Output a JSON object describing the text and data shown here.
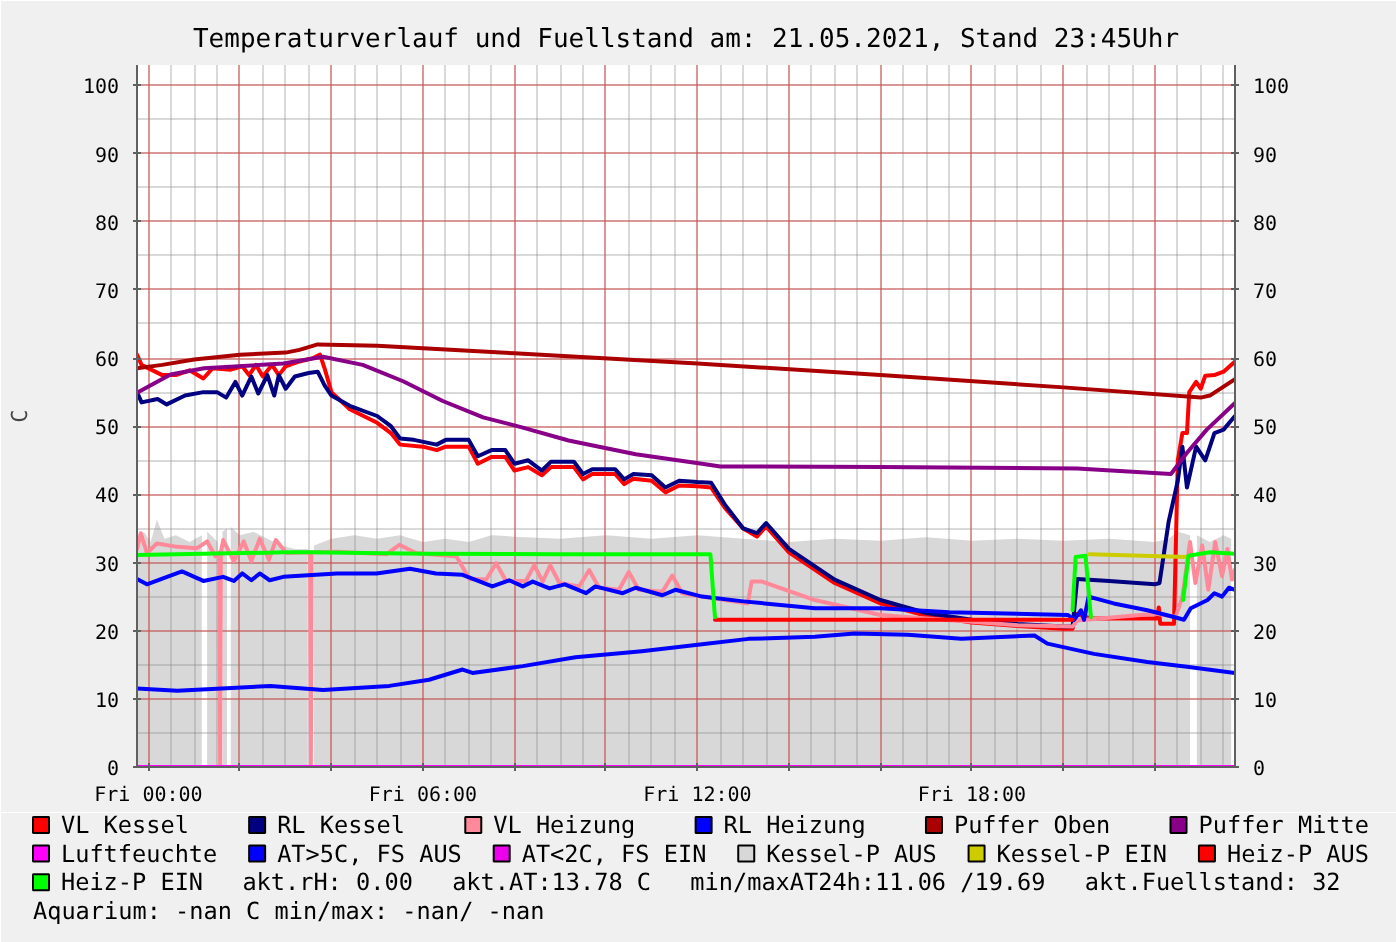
{
  "chart_data": {
    "type": "line",
    "title": "Temperaturverlauf und Fuellstand am: 21.05.2021, Stand 23:45Uhr",
    "ylabel": "C",
    "xlim": [
      "2021-05-20T23:45",
      "2021-05-21T23:45"
    ],
    "xticks": [
      {
        "value": "2021-05-21T00:00",
        "label": "Fri 00:00"
      },
      {
        "value": "2021-05-21T02:00",
        "label": null
      },
      {
        "value": "2021-05-21T04:00",
        "label": null
      },
      {
        "value": "2021-05-21T06:00",
        "label": "Fri 06:00"
      },
      {
        "value": "2021-05-21T08:00",
        "label": null
      },
      {
        "value": "2021-05-21T10:00",
        "label": null
      },
      {
        "value": "2021-05-21T12:00",
        "label": "Fri 12:00"
      },
      {
        "value": "2021-05-21T14:00",
        "label": null
      },
      {
        "value": "2021-05-21T16:00",
        "label": null
      },
      {
        "value": "2021-05-21T18:00",
        "label": "Fri 18:00"
      },
      {
        "value": "2021-05-21T20:00",
        "label": null
      },
      {
        "value": "2021-05-21T22:00",
        "label": null
      }
    ],
    "ylim": [
      0,
      103
    ],
    "yticks": [
      0,
      10,
      20,
      30,
      40,
      50,
      60,
      70,
      80,
      90,
      100
    ],
    "y2lim": [
      0,
      103
    ],
    "y2ticks": [
      0,
      10,
      20,
      30,
      40,
      50,
      60,
      70,
      80,
      90,
      100
    ],
    "grid": true,
    "legend": "bottom",
    "annotations": [
      "akt.rH: 0.00",
      "akt.AT:13.78 C",
      "min/maxAT24h:11.06 /19.69",
      "akt.Fuellstand:   32",
      "Aquarium: -nan C  min/max: -nan/ -nan"
    ],
    "series": [
      {
        "name": "VL Kessel",
        "color": "#ff0000",
        "x": [
          "2021-05-20T23:45",
          "2021-05-20T23:51",
          "2021-05-21T00:18",
          "2021-05-21T00:36",
          "2021-05-21T00:54",
          "2021-05-21T01:12",
          "2021-05-21T01:24",
          "2021-05-21T01:48",
          "2021-05-21T02:03",
          "2021-05-21T02:12",
          "2021-05-21T02:21",
          "2021-05-21T02:30",
          "2021-05-21T02:42",
          "2021-05-21T02:51",
          "2021-05-21T03:00",
          "2021-05-21T03:18",
          "2021-05-21T03:36",
          "2021-05-21T03:45",
          "2021-05-21T03:51",
          "2021-05-21T04:00",
          "2021-05-21T04:24",
          "2021-05-21T05:00",
          "2021-05-21T05:18",
          "2021-05-21T05:30",
          "2021-05-21T06:00",
          "2021-05-21T06:18",
          "2021-05-21T06:30",
          "2021-05-21T07:00",
          "2021-05-21T07:12",
          "2021-05-21T07:30",
          "2021-05-21T07:48",
          "2021-05-21T08:00",
          "2021-05-21T08:18",
          "2021-05-21T08:36",
          "2021-05-21T08:48",
          "2021-05-21T09:18",
          "2021-05-21T09:30",
          "2021-05-21T09:42",
          "2021-05-21T10:12",
          "2021-05-21T10:24",
          "2021-05-21T10:36",
          "2021-05-21T11:00",
          "2021-05-21T11:18",
          "2021-05-21T11:36",
          "2021-05-21T12:00",
          "2021-05-21T12:18",
          "2021-05-21T12:36",
          "2021-05-21T13:00",
          "2021-05-21T13:18",
          "2021-05-21T13:30",
          "2021-05-21T14:00",
          "2021-05-21T15:00",
          "2021-05-21T16:00",
          "2021-05-21T17:00",
          "2021-05-21T18:00",
          "2021-05-21T19:00",
          "2021-05-21T20:00",
          "2021-05-21T20:12",
          "2021-05-21T20:15",
          "2021-05-21T20:36",
          "2021-05-21T22:03",
          "2021-05-21T22:05",
          "2021-05-21T22:07",
          "2021-05-21T22:25",
          "2021-05-21T22:30",
          "2021-05-21T22:36",
          "2021-05-21T22:42",
          "2021-05-21T22:45",
          "2021-05-21T22:54",
          "2021-05-21T23:00",
          "2021-05-21T23:06",
          "2021-05-21T23:18",
          "2021-05-21T23:30",
          "2021-05-21T23:45"
        ],
        "values": [
          60.5,
          59,
          57.5,
          57.5,
          58.2,
          57,
          58.5,
          58.3,
          58.8,
          57.5,
          59,
          57.3,
          59,
          57.5,
          58.8,
          59.5,
          60,
          60.5,
          58.5,
          55,
          52.5,
          50.5,
          49,
          47.3,
          47,
          46.5,
          47,
          47,
          44.5,
          45.5,
          45.5,
          43.5,
          44,
          42.8,
          44,
          44,
          42.2,
          43,
          43,
          41.5,
          42.3,
          42,
          40.3,
          41.3,
          41.2,
          41,
          38,
          35,
          33.8,
          35.3,
          31.5,
          27,
          24,
          22.2,
          21.2,
          20.7,
          20.3,
          20.3,
          22.5,
          21.8,
          21.8,
          23.4,
          21,
          21,
          45,
          49,
          49,
          55,
          56.5,
          55.5,
          57.4,
          57.5,
          58,
          59.5
        ]
      },
      {
        "name": "RL Kessel",
        "color": "#000080",
        "x": [
          "2021-05-20T23:45",
          "2021-05-20T23:51",
          "2021-05-21T00:12",
          "2021-05-21T00:24",
          "2021-05-21T00:48",
          "2021-05-21T01:12",
          "2021-05-21T01:30",
          "2021-05-21T01:42",
          "2021-05-21T01:54",
          "2021-05-21T02:03",
          "2021-05-21T02:15",
          "2021-05-21T02:24",
          "2021-05-21T02:36",
          "2021-05-21T02:45",
          "2021-05-21T02:51",
          "2021-05-21T03:00",
          "2021-05-21T03:12",
          "2021-05-21T03:30",
          "2021-05-21T03:42",
          "2021-05-21T03:51",
          "2021-05-21T04:00",
          "2021-05-21T04:24",
          "2021-05-21T05:00",
          "2021-05-21T05:18",
          "2021-05-21T05:30",
          "2021-05-21T05:48",
          "2021-05-21T06:18",
          "2021-05-21T06:30",
          "2021-05-21T07:00",
          "2021-05-21T07:12",
          "2021-05-21T07:30",
          "2021-05-21T07:48",
          "2021-05-21T08:00",
          "2021-05-21T08:18",
          "2021-05-21T08:36",
          "2021-05-21T08:48",
          "2021-05-21T09:18",
          "2021-05-21T09:30",
          "2021-05-21T09:42",
          "2021-05-21T10:12",
          "2021-05-21T10:24",
          "2021-05-21T10:36",
          "2021-05-21T11:00",
          "2021-05-21T11:18",
          "2021-05-21T11:36",
          "2021-05-21T12:00",
          "2021-05-21T12:18",
          "2021-05-21T12:36",
          "2021-05-21T13:00",
          "2021-05-21T13:18",
          "2021-05-21T13:30",
          "2021-05-21T14:00",
          "2021-05-21T15:00",
          "2021-05-21T16:00",
          "2021-05-21T17:00",
          "2021-05-21T18:00",
          "2021-05-21T19:00",
          "2021-05-21T20:00",
          "2021-05-21T20:12",
          "2021-05-21T20:18",
          "2021-05-21T21:00",
          "2021-05-21T22:00",
          "2021-05-21T22:06",
          "2021-05-21T22:18",
          "2021-05-21T22:30",
          "2021-05-21T22:36",
          "2021-05-21T22:42",
          "2021-05-21T22:54",
          "2021-05-21T23:06",
          "2021-05-21T23:18",
          "2021-05-21T23:30",
          "2021-05-21T23:45"
        ],
        "values": [
          55,
          53.5,
          54,
          53.2,
          54.5,
          55,
          55,
          54.2,
          56.5,
          54.5,
          57.3,
          54.8,
          57.5,
          54.5,
          57.5,
          55.5,
          57.3,
          57.8,
          58,
          56,
          54.5,
          53,
          51.5,
          50,
          48.2,
          48,
          47.3,
          48,
          48,
          45.6,
          46.5,
          46.5,
          44.5,
          45,
          43.5,
          44.8,
          44.8,
          43,
          43.7,
          43.7,
          42.2,
          43,
          42.8,
          41,
          42,
          41.8,
          41.7,
          38.5,
          35,
          34.3,
          35.8,
          32,
          27.5,
          24.5,
          22.6,
          21.6,
          21,
          20.6,
          20.6,
          27.6,
          27.3,
          26.8,
          27,
          36,
          42,
          47,
          41,
          47,
          45,
          49,
          49.5,
          51.5
        ]
      },
      {
        "name": "VL Heizung",
        "color": "#ff8899",
        "x": [
          "2021-05-20T23:45",
          "2021-05-20T23:50",
          "2021-05-20T23:58",
          "2021-05-21T00:11",
          "2021-05-21T00:38",
          "2021-05-21T01:04",
          "2021-05-21T01:17",
          "2021-05-21T01:28",
          "2021-05-21T01:33",
          "2021-05-21T01:34",
          "2021-05-21T01:35",
          "2021-05-21T01:38",
          "2021-05-21T01:52",
          "2021-05-21T02:05",
          "2021-05-21T02:15",
          "2021-05-21T02:26",
          "2021-05-21T02:38",
          "2021-05-21T02:47",
          "2021-05-21T03:01",
          "2021-05-21T03:32",
          "2021-05-21T03:33",
          "2021-05-21T03:34",
          "2021-05-21T04:07",
          "2021-05-21T05:12",
          "2021-05-21T05:29",
          "2021-05-21T05:51",
          "2021-05-21T06:44",
          "2021-05-21T07:01",
          "2021-05-21T07:23",
          "2021-05-21T07:36",
          "2021-05-21T07:49",
          "2021-05-21T08:15",
          "2021-05-21T08:26",
          "2021-05-21T08:37",
          "2021-05-21T08:47",
          "2021-05-21T08:59",
          "2021-05-21T09:25",
          "2021-05-21T09:38",
          "2021-05-21T09:51",
          "2021-05-21T10:17",
          "2021-05-21T10:30",
          "2021-05-21T10:43",
          "2021-05-21T11:14",
          "2021-05-21T11:27",
          "2021-05-21T11:40",
          "2021-05-21T12:06",
          "2021-05-21T13:06",
          "2021-05-21T13:11",
          "2021-05-21T13:25",
          "2021-05-21T14:34",
          "2021-05-21T16:00",
          "2021-05-21T17:00",
          "2021-05-21T18:00",
          "2021-05-21T19:00",
          "2021-05-21T20:12",
          "2021-05-21T20:18",
          "2021-05-21T22:00",
          "2021-05-21T22:27",
          "2021-05-21T22:36",
          "2021-05-21T22:46",
          "2021-05-21T22:53",
          "2021-05-21T23:02",
          "2021-05-21T23:10",
          "2021-05-21T23:19",
          "2021-05-21T23:28",
          "2021-05-21T23:35",
          "2021-05-21T23:41",
          "2021-05-21T23:45"
        ],
        "values": [
          32,
          34.3,
          31.4,
          32.8,
          32.3,
          32.1,
          33.1,
          30.9,
          31.5,
          0,
          31.5,
          33.3,
          30.2,
          33.1,
          30.2,
          33.5,
          30.4,
          33.3,
          31.4,
          31.5,
          0,
          31.5,
          31.6,
          31.2,
          32.6,
          31.4,
          30.9,
          27.6,
          27.5,
          29.9,
          27.3,
          27.3,
          29.6,
          27.2,
          29.6,
          27,
          26.5,
          28.9,
          26.3,
          26,
          28.6,
          26,
          25.7,
          28.1,
          25.5,
          25,
          24,
          27.2,
          27.2,
          24.5,
          22.3,
          21.8,
          21.3,
          20.8,
          20.6,
          21.5,
          22.5,
          22,
          25,
          33,
          27,
          32.5,
          26,
          33,
          28,
          32,
          27.5,
          29
        ]
      },
      {
        "name": "RL Heizung",
        "color": "#0000ff",
        "x": [
          "2021-05-20T23:45",
          "2021-05-20T23:58",
          "2021-05-21T00:20",
          "2021-05-21T00:44",
          "2021-05-21T01:12",
          "2021-05-21T01:38",
          "2021-05-21T01:52",
          "2021-05-21T02:03",
          "2021-05-21T02:15",
          "2021-05-21T02:26",
          "2021-05-21T02:39",
          "2021-05-21T02:57",
          "2021-05-21T04:07",
          "2021-05-21T04:59",
          "2021-05-21T05:43",
          "2021-05-21T06:17",
          "2021-05-21T06:52",
          "2021-05-21T07:31",
          "2021-05-21T07:53",
          "2021-05-21T08:11",
          "2021-05-21T08:24",
          "2021-05-21T08:46",
          "2021-05-21T09:06",
          "2021-05-21T09:34",
          "2021-05-21T09:46",
          "2021-05-21T10:22",
          "2021-05-21T10:39",
          "2021-05-21T11:14",
          "2021-05-21T11:31",
          "2021-05-21T12:06",
          "2021-05-21T13:00",
          "2021-05-21T14:34",
          "2021-05-21T16:00",
          "2021-05-21T17:30",
          "2021-05-21T20:06",
          "2021-05-21T20:14",
          "2021-05-21T20:23",
          "2021-05-21T20:27",
          "2021-05-21T20:33",
          "2021-05-21T21:06",
          "2021-05-21T21:50",
          "2021-05-21T22:25",
          "2021-05-21T22:38",
          "2021-05-21T22:47",
          "2021-05-21T23:09",
          "2021-05-21T23:18",
          "2021-05-21T23:28",
          "2021-05-21T23:37",
          "2021-05-21T23:45"
        ],
        "values": [
          27.6,
          26.8,
          27.7,
          28.7,
          27.3,
          27.9,
          27.3,
          28.4,
          27.4,
          28.4,
          27.4,
          27.9,
          28.4,
          28.4,
          29.1,
          28.4,
          28.2,
          26.5,
          27.4,
          26.5,
          27.2,
          26.2,
          26.8,
          25.5,
          26.5,
          25.5,
          26.3,
          25.2,
          26,
          25,
          24.3,
          23.3,
          23.3,
          22.7,
          22.3,
          21.6,
          23,
          21.6,
          25,
          24,
          23,
          22,
          21.6,
          23.3,
          24.5,
          25.5,
          25,
          26.3,
          26
        ]
      },
      {
        "name": "Puffer Oben",
        "color": "#aa0000",
        "x": [
          "2021-05-20T23:45",
          "2021-05-21T00:18",
          "2021-05-21T01:00",
          "2021-05-21T02:00",
          "2021-05-21T03:00",
          "2021-05-21T03:18",
          "2021-05-21T03:42",
          "2021-05-21T05:00",
          "2021-05-21T08:00",
          "2021-05-21T12:00",
          "2021-05-21T16:00",
          "2021-05-21T20:00",
          "2021-05-21T23:00",
          "2021-05-21T23:12",
          "2021-05-21T23:45"
        ],
        "values": [
          58.5,
          59,
          59.8,
          60.5,
          60.8,
          61.2,
          62,
          61.8,
          60.7,
          59.2,
          57.5,
          55.7,
          54.2,
          54.5,
          56.9
        ]
      },
      {
        "name": "Puffer Mitte",
        "color": "#880088",
        "x": [
          "2021-05-20T23:45",
          "2021-05-21T00:29",
          "2021-05-21T01:13",
          "2021-05-21T02:57",
          "2021-05-21T03:49",
          "2021-05-21T04:41",
          "2021-05-21T05:34",
          "2021-05-21T06:26",
          "2021-05-21T07:19",
          "2021-05-21T08:11",
          "2021-05-21T09:11",
          "2021-05-21T10:39",
          "2021-05-21T12:06",
          "2021-05-21T12:30",
          "2021-05-21T16:00",
          "2021-05-21T20:18",
          "2021-05-21T22:21",
          "2021-05-21T22:42",
          "2021-05-21T23:08",
          "2021-05-21T23:45"
        ],
        "values": [
          54.9,
          57.6,
          58.5,
          59.2,
          60.2,
          59,
          56.6,
          53.7,
          51.3,
          49.8,
          47.9,
          45.9,
          44.5,
          44.1,
          44,
          43.8,
          43,
          46.1,
          49.5,
          53.4
        ]
      },
      {
        "name": "Luftfeuchte",
        "color": "#ff00ff",
        "x": [
          "2021-05-20T23:45",
          "2021-05-21T23:45"
        ],
        "values": [
          0,
          0
        ]
      },
      {
        "name": "AT>5C, FS AUS",
        "color": "#0000ff",
        "x": [
          "2021-05-20T23:45",
          "2021-05-21T00:38",
          "2021-05-21T02:40",
          "2021-05-21T03:49",
          "2021-05-21T05:16",
          "2021-05-21T06:08",
          "2021-05-21T06:52",
          "2021-05-21T07:05",
          "2021-05-21T08:11",
          "2021-05-21T09:20",
          "2021-05-21T10:47",
          "2021-05-21T12:06",
          "2021-05-21T13:07",
          "2021-05-21T14:34",
          "2021-05-21T15:26",
          "2021-05-21T16:36",
          "2021-05-21T17:46",
          "2021-05-21T19:22",
          "2021-05-21T19:39",
          "2021-05-21T20:40",
          "2021-05-21T21:50",
          "2021-05-21T22:42",
          "2021-05-21T23:45"
        ],
        "values": [
          11.5,
          11.2,
          11.9,
          11.3,
          11.9,
          12.8,
          14.3,
          13.8,
          14.8,
          16.1,
          17,
          18,
          18.8,
          19.1,
          19.6,
          19.4,
          18.8,
          19.3,
          18.1,
          16.6,
          15.4,
          14.7,
          13.8
        ]
      },
      {
        "name": "AT<2C, FS EIN",
        "color": "#ee00ee"
      },
      {
        "name": "Kessel-P AUS",
        "type": "area",
        "color": "#d8d8d8",
        "x": [
          "2021-05-20T23:45",
          "2021-05-20T23:54",
          "2021-05-21T00:03",
          "2021-05-21T00:11",
          "2021-05-21T00:21",
          "2021-05-21T00:36",
          "2021-05-21T00:54",
          "2021-05-21T01:10",
          "2021-05-21T01:14",
          "2021-05-21T01:17",
          "2021-05-21T01:31",
          "2021-05-21T01:34",
          "2021-05-21T01:37",
          "2021-05-21T01:43",
          "2021-05-21T01:45",
          "2021-05-21T01:48",
          "2021-05-21T02:00",
          "2021-05-21T02:18",
          "2021-05-21T02:36",
          "2021-05-21T02:54",
          "2021-05-21T03:12",
          "2021-05-21T03:29",
          "2021-05-21T03:33",
          "2021-05-21T03:37",
          "2021-05-21T04:00",
          "2021-05-21T04:30",
          "2021-05-21T05:00",
          "2021-05-21T05:30",
          "2021-05-21T06:00",
          "2021-05-21T06:30",
          "2021-05-21T07:00",
          "2021-05-21T07:30",
          "2021-05-21T08:00",
          "2021-05-21T09:00",
          "2021-05-21T10:00",
          "2021-05-21T11:00",
          "2021-05-21T12:00",
          "2021-05-21T13:00",
          "2021-05-21T14:00",
          "2021-05-21T15:00",
          "2021-05-21T16:00",
          "2021-05-21T17:00",
          "2021-05-21T18:00",
          "2021-05-21T19:00",
          "2021-05-21T20:00",
          "2021-05-21T21:00",
          "2021-05-21T22:00",
          "2021-05-21T22:18",
          "2021-05-21T22:30",
          "2021-05-21T22:46",
          "2021-05-21T22:50",
          "2021-05-21T22:55",
          "2021-05-21T23:12",
          "2021-05-21T23:30",
          "2021-05-21T23:40"
        ],
        "values": [
          33,
          34.5,
          33,
          36.3,
          33.5,
          34,
          33,
          34,
          null,
          34.5,
          33,
          null,
          34.5,
          35,
          null,
          35.2,
          34,
          34.5,
          33.5,
          32.5,
          32,
          32,
          null,
          32.5,
          33.5,
          34,
          33.5,
          34,
          33,
          33.5,
          33,
          34,
          33.8,
          33.5,
          34,
          33.5,
          34,
          33.5,
          33,
          33.5,
          33.2,
          33.7,
          33.2,
          33.5,
          33.2,
          33.5,
          33,
          33.5,
          34.5,
          34,
          null,
          34,
          33,
          34,
          33.5
        ]
      },
      {
        "name": "Kessel-P EIN",
        "color": "#cccc00",
        "x": [
          "2021-05-21T20:34",
          "2021-05-21T22:41"
        ],
        "values": [
          31.2,
          30.8
        ]
      },
      {
        "name": "Heiz-P AUS",
        "color": "#ff0000",
        "x": [
          "2021-05-21T12:23",
          "2021-05-21T20:12"
        ],
        "values": [
          21.6,
          21.6
        ]
      },
      {
        "name": "Heiz-P EIN",
        "color": "#00ff00",
        "x": [
          "2021-05-20T23:45",
          "2021-05-21T03:00",
          "2021-05-21T03:30",
          "2021-05-21T06:00",
          "2021-05-21T09:00",
          "2021-05-21T12:17",
          "2021-05-21T12:23",
          "2021-05-21T12:24",
          "2021-05-21T20:12",
          "2021-05-21T20:16",
          "2021-05-21T20:29",
          "2021-05-21T20:36",
          "2021-05-21T20:39",
          "2021-05-21T22:37",
          "2021-05-21T22:44",
          "2021-05-21T23:12",
          "2021-05-21T23:45"
        ],
        "values": [
          31.1,
          31.5,
          31.5,
          31.3,
          31.2,
          31.2,
          22,
          null,
          23,
          30.8,
          31,
          22,
          null,
          24.5,
          31,
          31.5,
          31.3
        ]
      }
    ]
  }
}
